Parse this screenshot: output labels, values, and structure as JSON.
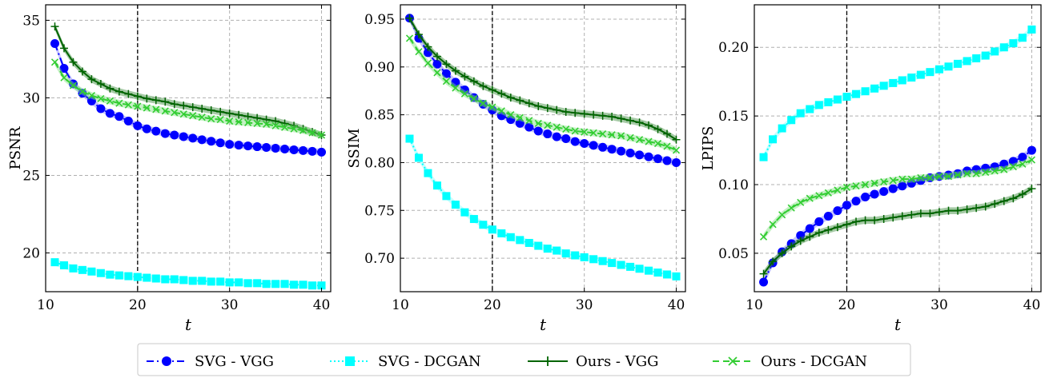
{
  "chart_data": [
    {
      "type": "line",
      "ylabel": "PSNR",
      "xlabel": "t",
      "xlim": [
        10,
        41
      ],
      "ylim": [
        17.5,
        36
      ],
      "xticks": [
        10,
        20,
        30,
        40
      ],
      "yticks": [
        20,
        25,
        30,
        35
      ],
      "ytick_labels": [
        "20",
        "25",
        "30",
        "35"
      ],
      "grid": true,
      "vline": 20,
      "series": [
        {
          "name": "SVG - VGG",
          "x": [
            11,
            12,
            13,
            14,
            15,
            16,
            17,
            18,
            19,
            20,
            21,
            22,
            23,
            24,
            25,
            26,
            27,
            28,
            29,
            30,
            31,
            32,
            33,
            34,
            35,
            36,
            37,
            38,
            39,
            40
          ],
          "values": [
            33.5,
            31.9,
            30.9,
            30.3,
            29.8,
            29.3,
            29.0,
            28.8,
            28.5,
            28.2,
            28.0,
            27.85,
            27.7,
            27.6,
            27.5,
            27.4,
            27.3,
            27.2,
            27.1,
            27.0,
            26.95,
            26.9,
            26.85,
            26.8,
            26.75,
            26.7,
            26.65,
            26.6,
            26.55,
            26.5
          ]
        },
        {
          "name": "SVG - DCGAN",
          "x": [
            11,
            12,
            13,
            14,
            15,
            16,
            17,
            18,
            19,
            20,
            21,
            22,
            23,
            24,
            25,
            26,
            27,
            28,
            29,
            30,
            31,
            32,
            33,
            34,
            35,
            36,
            37,
            38,
            39,
            40
          ],
          "values": [
            19.4,
            19.2,
            19.0,
            18.9,
            18.8,
            18.7,
            18.6,
            18.55,
            18.5,
            18.45,
            18.4,
            18.35,
            18.3,
            18.3,
            18.25,
            18.2,
            18.2,
            18.15,
            18.15,
            18.1,
            18.1,
            18.05,
            18.05,
            18.0,
            18.0,
            18.0,
            17.95,
            17.95,
            17.9,
            17.9
          ]
        },
        {
          "name": "Ours - VGG",
          "x": [
            11,
            12,
            13,
            14,
            15,
            16,
            17,
            18,
            19,
            20,
            21,
            22,
            23,
            24,
            25,
            26,
            27,
            28,
            29,
            30,
            31,
            32,
            33,
            34,
            35,
            36,
            37,
            38,
            39,
            40
          ],
          "values": [
            34.6,
            33.2,
            32.3,
            31.7,
            31.2,
            30.9,
            30.6,
            30.4,
            30.25,
            30.1,
            29.95,
            29.85,
            29.75,
            29.6,
            29.5,
            29.4,
            29.3,
            29.2,
            29.1,
            29.0,
            28.9,
            28.8,
            28.7,
            28.6,
            28.5,
            28.35,
            28.2,
            28.0,
            27.8,
            27.6
          ]
        },
        {
          "name": "Ours - DCGAN",
          "x": [
            11,
            12,
            13,
            14,
            15,
            16,
            17,
            18,
            19,
            20,
            21,
            22,
            23,
            24,
            25,
            26,
            27,
            28,
            29,
            30,
            31,
            32,
            33,
            34,
            35,
            36,
            37,
            38,
            39,
            40
          ],
          "values": [
            32.3,
            31.3,
            30.8,
            30.4,
            30.15,
            29.95,
            29.8,
            29.65,
            29.55,
            29.45,
            29.35,
            29.25,
            29.15,
            29.05,
            28.95,
            28.85,
            28.75,
            28.65,
            28.6,
            28.5,
            28.45,
            28.4,
            28.35,
            28.3,
            28.2,
            28.1,
            28.0,
            27.9,
            27.75,
            27.6
          ]
        }
      ]
    },
    {
      "type": "line",
      "ylabel": "SSIM",
      "xlabel": "t",
      "xlim": [
        10,
        41
      ],
      "ylim": [
        0.665,
        0.965
      ],
      "xticks": [
        10,
        20,
        30,
        40
      ],
      "yticks": [
        0.7,
        0.75,
        0.8,
        0.85,
        0.9,
        0.95
      ],
      "ytick_labels": [
        "0.70",
        "0.75",
        "0.80",
        "0.85",
        "0.90",
        "0.95"
      ],
      "grid": true,
      "vline": 20,
      "series": [
        {
          "name": "SVG - VGG",
          "x": [
            11,
            12,
            13,
            14,
            15,
            16,
            17,
            18,
            19,
            20,
            21,
            22,
            23,
            24,
            25,
            26,
            27,
            28,
            29,
            30,
            31,
            32,
            33,
            34,
            35,
            36,
            37,
            38,
            39,
            40
          ],
          "values": [
            0.951,
            0.93,
            0.915,
            0.903,
            0.893,
            0.884,
            0.876,
            0.868,
            0.861,
            0.855,
            0.849,
            0.845,
            0.841,
            0.837,
            0.833,
            0.83,
            0.827,
            0.825,
            0.822,
            0.82,
            0.818,
            0.816,
            0.814,
            0.812,
            0.81,
            0.808,
            0.806,
            0.804,
            0.802,
            0.8
          ]
        },
        {
          "name": "SVG - DCGAN",
          "x": [
            11,
            12,
            13,
            14,
            15,
            16,
            17,
            18,
            19,
            20,
            21,
            22,
            23,
            24,
            25,
            26,
            27,
            28,
            29,
            30,
            31,
            32,
            33,
            34,
            35,
            36,
            37,
            38,
            39,
            40
          ],
          "values": [
            0.825,
            0.805,
            0.789,
            0.776,
            0.765,
            0.756,
            0.748,
            0.741,
            0.735,
            0.73,
            0.726,
            0.722,
            0.719,
            0.716,
            0.713,
            0.71,
            0.708,
            0.705,
            0.703,
            0.701,
            0.699,
            0.697,
            0.695,
            0.693,
            0.691,
            0.689,
            0.687,
            0.685,
            0.683,
            0.681
          ]
        },
        {
          "name": "Ours - VGG",
          "x": [
            11,
            12,
            13,
            14,
            15,
            16,
            17,
            18,
            19,
            20,
            21,
            22,
            23,
            24,
            25,
            26,
            27,
            28,
            29,
            30,
            31,
            32,
            33,
            34,
            35,
            36,
            37,
            38,
            39,
            40
          ],
          "values": [
            0.951,
            0.934,
            0.921,
            0.911,
            0.903,
            0.896,
            0.89,
            0.885,
            0.88,
            0.876,
            0.872,
            0.868,
            0.865,
            0.862,
            0.859,
            0.857,
            0.855,
            0.853,
            0.852,
            0.851,
            0.85,
            0.849,
            0.848,
            0.846,
            0.844,
            0.842,
            0.839,
            0.835,
            0.83,
            0.824
          ]
        },
        {
          "name": "Ours - DCGAN",
          "x": [
            11,
            12,
            13,
            14,
            15,
            16,
            17,
            18,
            19,
            20,
            21,
            22,
            23,
            24,
            25,
            26,
            27,
            28,
            29,
            30,
            31,
            32,
            33,
            34,
            35,
            36,
            37,
            38,
            39,
            40
          ],
          "values": [
            0.93,
            0.916,
            0.904,
            0.894,
            0.885,
            0.878,
            0.872,
            0.867,
            0.862,
            0.858,
            0.854,
            0.85,
            0.847,
            0.844,
            0.841,
            0.839,
            0.837,
            0.835,
            0.833,
            0.832,
            0.831,
            0.83,
            0.829,
            0.828,
            0.826,
            0.824,
            0.822,
            0.82,
            0.817,
            0.813
          ]
        }
      ]
    },
    {
      "type": "line",
      "ylabel": "LPIPS",
      "xlabel": "t",
      "xlim": [
        10,
        41
      ],
      "ylim": [
        0.022,
        0.231
      ],
      "xticks": [
        10,
        20,
        30,
        40
      ],
      "yticks": [
        0.05,
        0.1,
        0.15,
        0.2
      ],
      "ytick_labels": [
        "0.05",
        "0.10",
        "0.15",
        "0.20"
      ],
      "grid": true,
      "vline": 20,
      "series": [
        {
          "name": "SVG - VGG",
          "x": [
            11,
            12,
            13,
            14,
            15,
            16,
            17,
            18,
            19,
            20,
            21,
            22,
            23,
            24,
            25,
            26,
            27,
            28,
            29,
            30,
            31,
            32,
            33,
            34,
            35,
            36,
            37,
            38,
            39,
            40
          ],
          "values": [
            0.029,
            0.043,
            0.051,
            0.057,
            0.063,
            0.068,
            0.073,
            0.077,
            0.081,
            0.085,
            0.088,
            0.091,
            0.093,
            0.095,
            0.097,
            0.099,
            0.101,
            0.103,
            0.105,
            0.106,
            0.107,
            0.108,
            0.11,
            0.111,
            0.112,
            0.113,
            0.115,
            0.117,
            0.12,
            0.125
          ]
        },
        {
          "name": "SVG - DCGAN",
          "x": [
            11,
            12,
            13,
            14,
            15,
            16,
            17,
            18,
            19,
            20,
            21,
            22,
            23,
            24,
            25,
            26,
            27,
            28,
            29,
            30,
            31,
            32,
            33,
            34,
            35,
            36,
            37,
            38,
            39,
            40
          ],
          "values": [
            0.12,
            0.133,
            0.141,
            0.147,
            0.152,
            0.155,
            0.158,
            0.16,
            0.162,
            0.164,
            0.166,
            0.168,
            0.17,
            0.172,
            0.174,
            0.176,
            0.178,
            0.18,
            0.182,
            0.184,
            0.186,
            0.188,
            0.19,
            0.192,
            0.194,
            0.197,
            0.2,
            0.203,
            0.207,
            0.213
          ]
        },
        {
          "name": "Ours - VGG",
          "x": [
            11,
            12,
            13,
            14,
            15,
            16,
            17,
            18,
            19,
            20,
            21,
            22,
            23,
            24,
            25,
            26,
            27,
            28,
            29,
            30,
            31,
            32,
            33,
            34,
            35,
            36,
            37,
            38,
            39,
            40
          ],
          "values": [
            0.035,
            0.044,
            0.05,
            0.055,
            0.059,
            0.062,
            0.065,
            0.067,
            0.069,
            0.071,
            0.073,
            0.074,
            0.074,
            0.075,
            0.076,
            0.077,
            0.078,
            0.079,
            0.079,
            0.08,
            0.081,
            0.081,
            0.082,
            0.083,
            0.084,
            0.086,
            0.088,
            0.09,
            0.093,
            0.097
          ]
        },
        {
          "name": "Ours - DCGAN",
          "x": [
            11,
            12,
            13,
            14,
            15,
            16,
            17,
            18,
            19,
            20,
            21,
            22,
            23,
            24,
            25,
            26,
            27,
            28,
            29,
            30,
            31,
            32,
            33,
            34,
            35,
            36,
            37,
            38,
            39,
            40
          ],
          "values": [
            0.062,
            0.071,
            0.078,
            0.083,
            0.087,
            0.09,
            0.092,
            0.094,
            0.096,
            0.098,
            0.099,
            0.1,
            0.101,
            0.102,
            0.103,
            0.104,
            0.104,
            0.105,
            0.105,
            0.106,
            0.106,
            0.107,
            0.108,
            0.108,
            0.109,
            0.11,
            0.111,
            0.113,
            0.115,
            0.118
          ]
        }
      ]
    }
  ],
  "styles": {
    "SVG - VGG": {
      "color": "#0000ff",
      "band": "#8080ff",
      "marker": "circle",
      "dash": "9,4,2,4"
    },
    "SVG - DCGAN": {
      "color": "#00ffff",
      "band": "#80ffff",
      "marker": "square",
      "dash": "2,3"
    },
    "Ours - VGG": {
      "color": "#006400",
      "band": "#3a8a3a",
      "marker": "plus",
      "dash": ""
    },
    "Ours - DCGAN": {
      "color": "#32cd32",
      "band": "#7fe07f",
      "marker": "x",
      "dash": "8,5"
    }
  },
  "legend": {
    "placement": "bottom-center",
    "entries": [
      "SVG - VGG",
      "SVG - DCGAN",
      "Ours - VGG",
      "Ours - DCGAN"
    ]
  }
}
